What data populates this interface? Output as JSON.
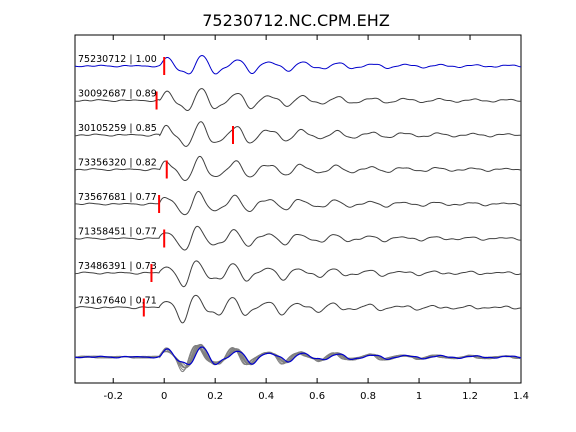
{
  "chart_data": {
    "type": "line",
    "title": "75230712.NC.CPM.EHZ",
    "xlabel": "",
    "ylabel": "",
    "xlim": [
      -0.35,
      1.4
    ],
    "xticks": [
      -0.2,
      0,
      0.2,
      0.4,
      0.6,
      0.8,
      1,
      1.2,
      1.4
    ],
    "xtick_labels": [
      "-0.2",
      "0",
      "0.2",
      "0.4",
      "0.6",
      "0.8",
      "1",
      "1.2",
      "1.4"
    ],
    "grid": false,
    "colors": {
      "reference": "#0000cc",
      "trace": "#404040",
      "pick": "#ff0000",
      "stack_gray": "#808080"
    },
    "series": [
      {
        "name": "75230712 | 1.00",
        "color": "#0000cc",
        "pick_time": 0.0,
        "amplitude": 0.85,
        "phase": 0.0
      },
      {
        "name": "30092687 | 0.89",
        "color": "#404040",
        "pick_time": -0.03,
        "amplitude": 0.95,
        "phase": 0.4
      },
      {
        "name": "30105259 | 0.85",
        "color": "#404040",
        "pick_time": 0.27,
        "amplitude": 1.0,
        "phase": 0.9
      },
      {
        "name": "73356320 | 0.82",
        "color": "#404040",
        "pick_time": 0.01,
        "amplitude": 0.95,
        "phase": 1.3
      },
      {
        "name": "73567681 | 0.77",
        "color": "#404040",
        "pick_time": -0.02,
        "amplitude": 0.9,
        "phase": 1.8
      },
      {
        "name": "71358451 | 0.77",
        "color": "#404040",
        "pick_time": 0.0,
        "amplitude": 0.9,
        "phase": 2.2
      },
      {
        "name": "73486391 | 0.73",
        "color": "#404040",
        "pick_time": -0.05,
        "amplitude": 0.95,
        "phase": 2.7
      },
      {
        "name": "73167640 | 0.71",
        "color": "#404040",
        "pick_time": -0.08,
        "amplitude": 1.0,
        "phase": 3.1
      }
    ],
    "stack": {
      "gray_count": 8,
      "blue_count": 1
    }
  }
}
